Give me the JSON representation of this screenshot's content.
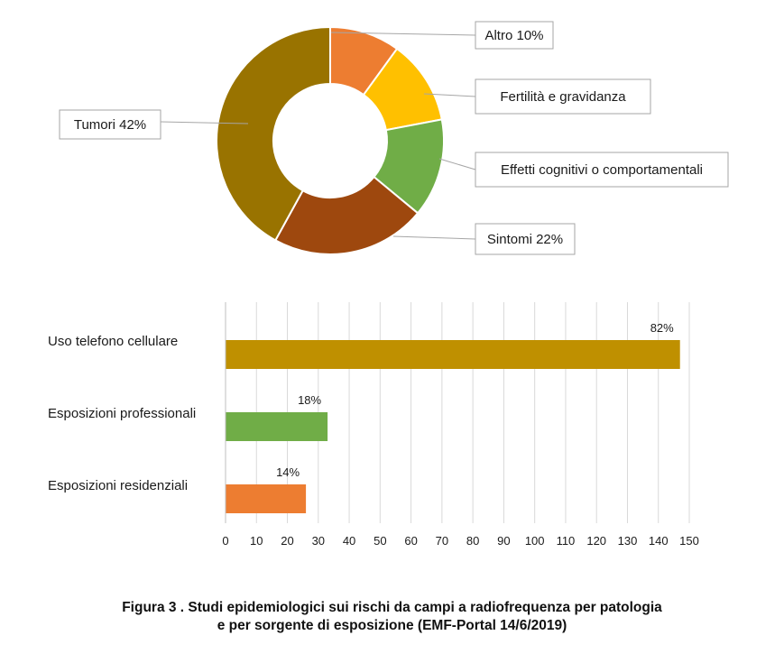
{
  "chart_data": [
    {
      "type": "pie",
      "donut": true,
      "slices": [
        {
          "label": "Altro 10%",
          "value": 10,
          "color": "#ED7D31"
        },
        {
          "label": "Fertilità e gravidanza",
          "value": 12,
          "color": "#FFC000"
        },
        {
          "label": "Effetti cognitivi o comportamentali",
          "value": 14,
          "color": "#70AD47"
        },
        {
          "label": "Sintomi 22%",
          "value": 22,
          "color": "#9E480E"
        },
        {
          "label": "Tumori 42%",
          "value": 42,
          "color": "#997300"
        }
      ]
    },
    {
      "type": "bar",
      "orientation": "horizontal",
      "categories": [
        "Uso telefono cellulare",
        "Esposizioni professionali",
        "Esposizioni residenziali"
      ],
      "values": [
        147,
        33,
        26
      ],
      "data_labels": [
        "82%",
        "18%",
        "14%"
      ],
      "colors": [
        "#BF9000",
        "#70AD47",
        "#ED7D31"
      ],
      "xlim": [
        0,
        150
      ],
      "xticks": [
        0,
        10,
        20,
        30,
        40,
        50,
        60,
        70,
        80,
        90,
        100,
        110,
        120,
        130,
        140,
        150
      ],
      "grid": true
    }
  ],
  "caption": {
    "line1": "Figura 3 . Studi epidemiologici sui rischi da campi a radiofrequenza per patologia",
    "line2": "e per sorgente di esposizione (EMF-Portal 14/6/2019)"
  }
}
